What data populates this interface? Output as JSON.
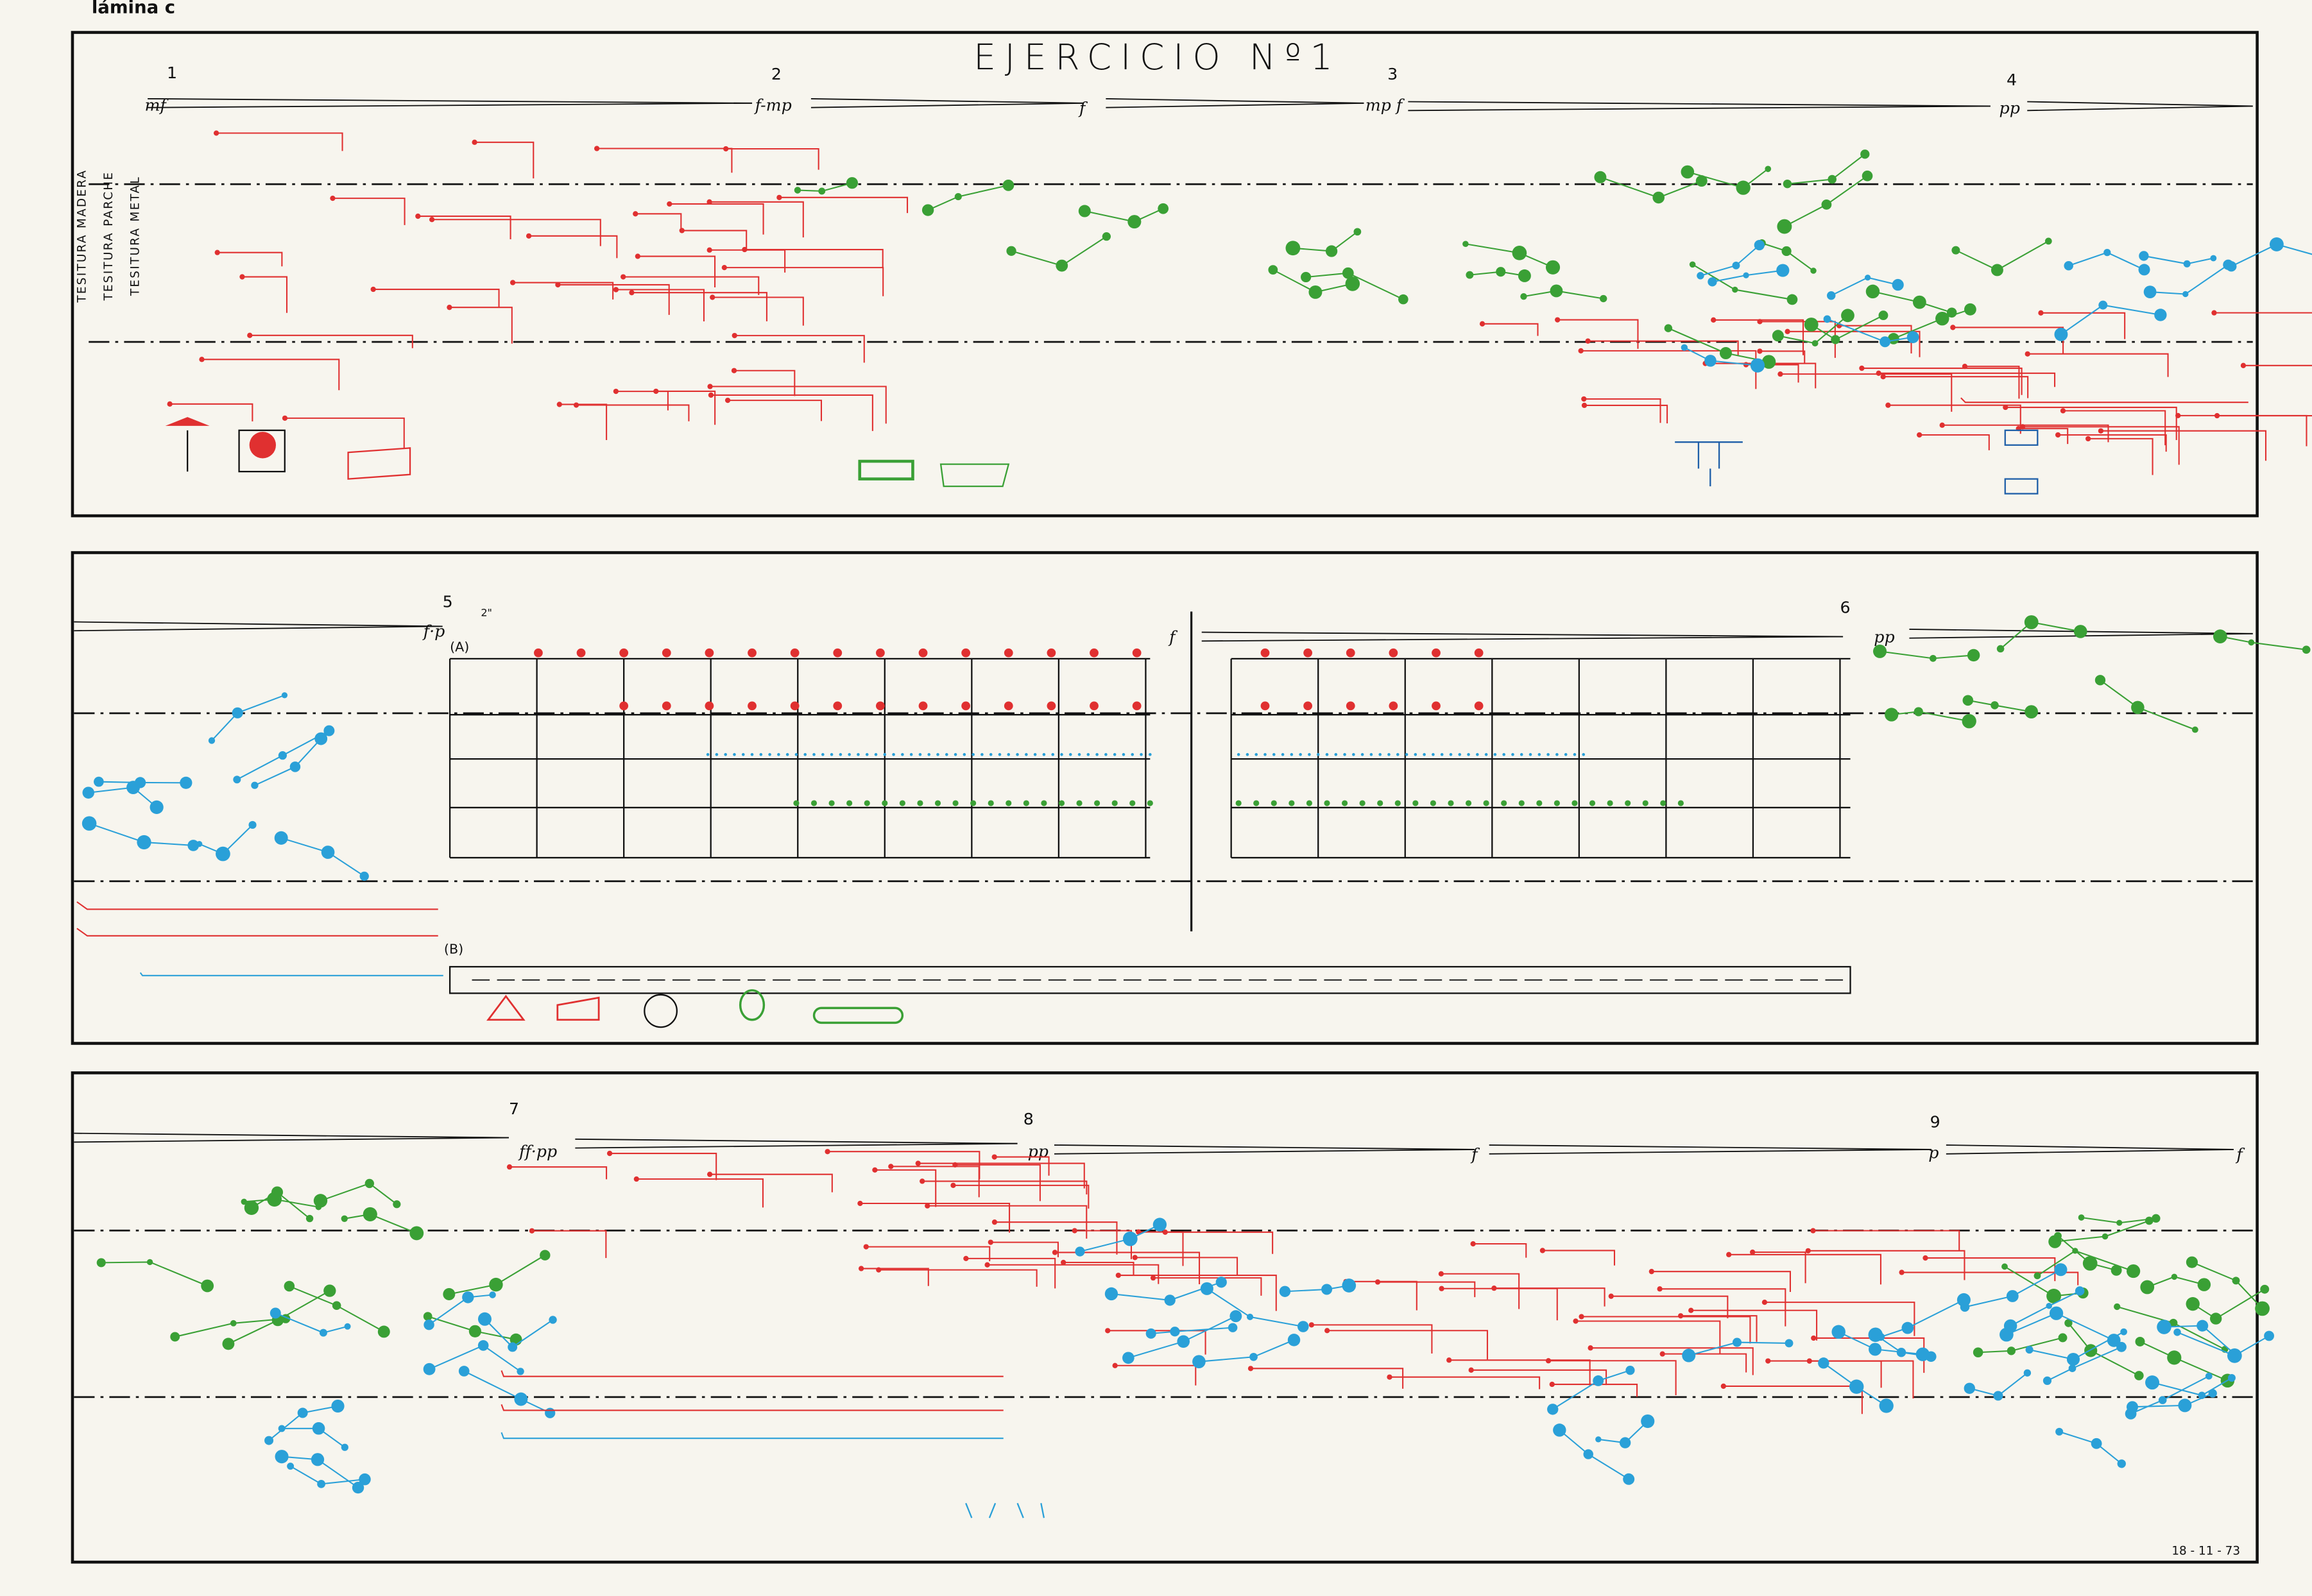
{
  "header": {
    "label": "lámina c"
  },
  "title": "EJERCICIO Nº1",
  "systems": [
    {
      "staff_labels": [
        "TESITURA MADERA",
        "TESITURA PARCHE",
        "TESITURA METAL"
      ],
      "marks": [
        {
          "number": "1",
          "dynamic": "mf"
        },
        {
          "number": "2",
          "dynamic": "f-mp"
        },
        {
          "dynamic": "f"
        },
        {
          "number": "3",
          "dynamic": "mp f"
        },
        {
          "number": "4",
          "dynamic": "pp"
        }
      ]
    },
    {
      "marks": [
        {
          "number": "5",
          "dynamic": "f·p",
          "duration": "2\""
        },
        {
          "dynamic": "f"
        },
        {
          "number": "6",
          "dynamic": "pp"
        }
      ],
      "sections": [
        "(A)",
        "(B)"
      ]
    },
    {
      "marks": [
        {
          "number": "7",
          "dynamic": "ff·pp"
        },
        {
          "number": "8",
          "dynamic": "pp"
        },
        {
          "dynamic": "f"
        },
        {
          "number": "9",
          "dynamic": "p"
        },
        {
          "dynamic": "f"
        }
      ]
    }
  ],
  "footer": {
    "date": "18 - 11 - 73"
  }
}
